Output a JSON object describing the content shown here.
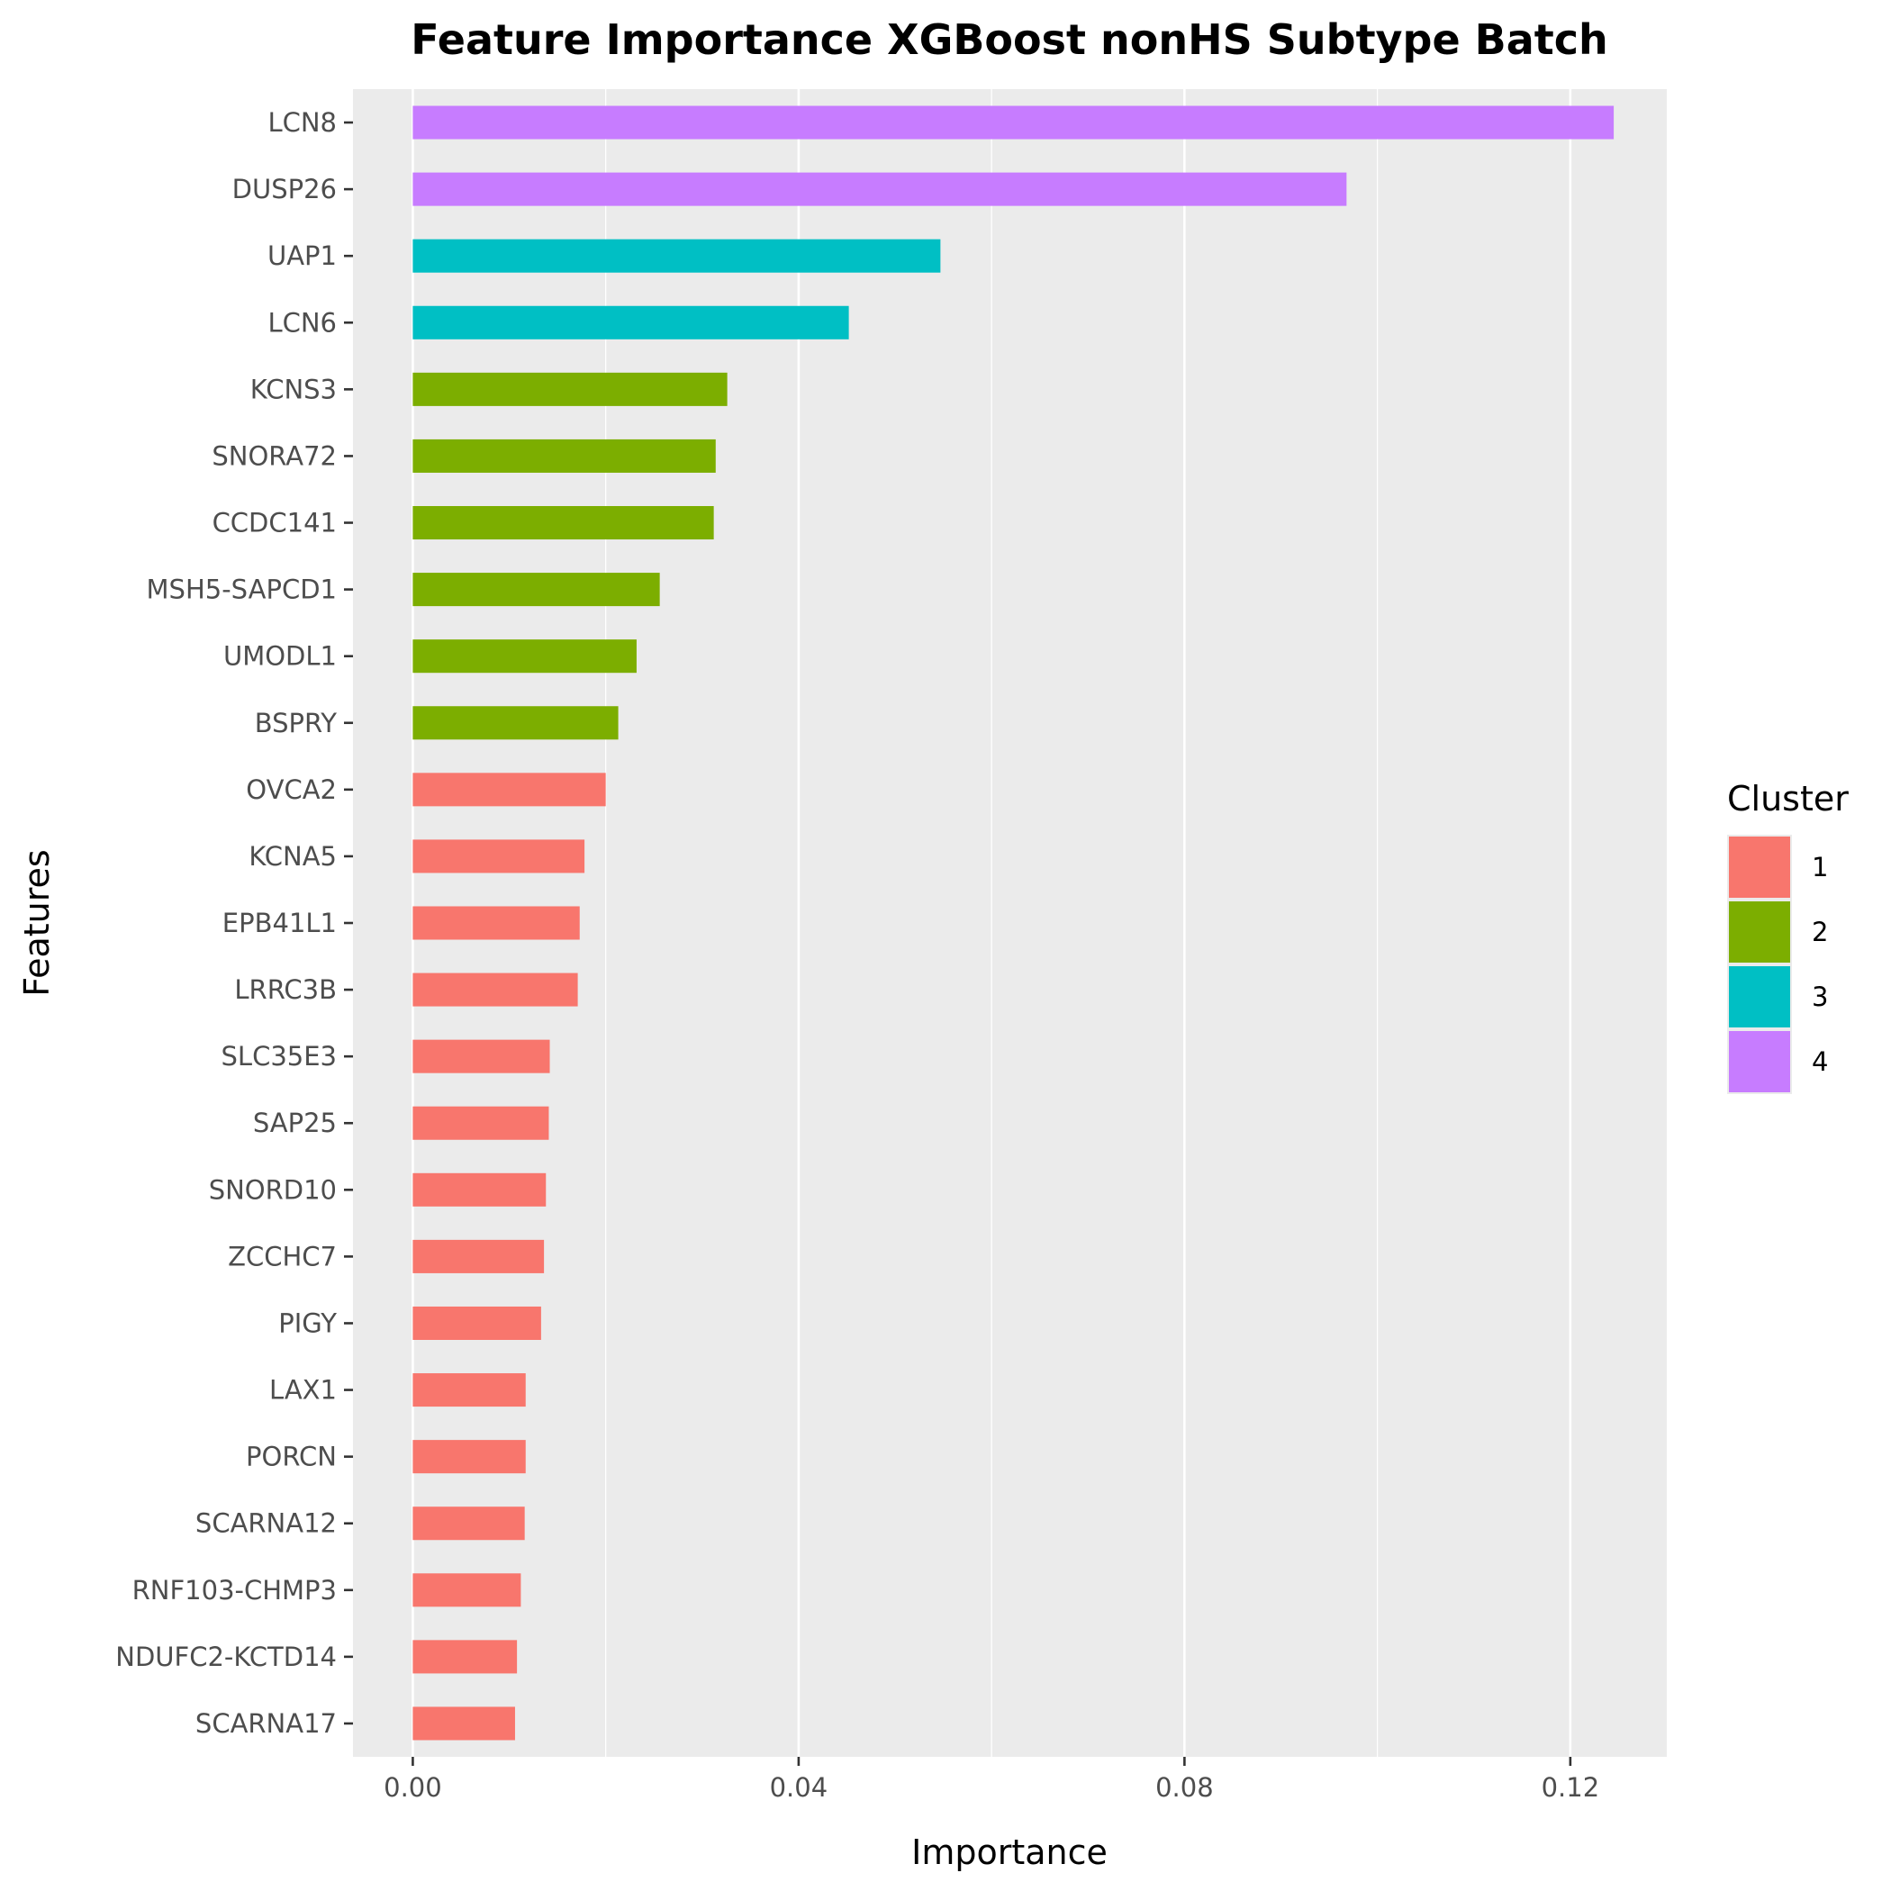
{
  "chart_data": {
    "type": "bar",
    "orientation": "horizontal",
    "title": "Feature Importance XGBoost nonHS Subtype Batch",
    "xlabel": "Importance",
    "ylabel": "Features",
    "xlim": [
      -0.0062,
      0.13
    ],
    "x_ticks": [
      0.0,
      0.04,
      0.08,
      0.12
    ],
    "x_tick_labels": [
      "0.00",
      "0.04",
      "0.08",
      "0.12"
    ],
    "grid": true,
    "legend_position": "right",
    "legend_title": "Cluster",
    "legend": [
      {
        "label": "1",
        "color": "#F8766D"
      },
      {
        "label": "2",
        "color": "#7CAE00"
      },
      {
        "label": "3",
        "color": "#00BFC4"
      },
      {
        "label": "4",
        "color": "#C77CFF"
      }
    ],
    "categories": [
      "LCN8",
      "DUSP26",
      "UAP1",
      "LCN6",
      "KCNS3",
      "SNORA72",
      "CCDC141",
      "MSH5-SAPCD1",
      "UMODL1",
      "BSPRY",
      "OVCA2",
      "KCNA5",
      "EPB41L1",
      "LRRC3B",
      "SLC35E3",
      "SAP25",
      "SNORD10",
      "ZCCHC7",
      "PIGY",
      "LAX1",
      "PORCN",
      "SCARNA12",
      "RNF103-CHMP3",
      "NDUFC2-KCTD14",
      "SCARNA17"
    ],
    "values": [
      0.1245,
      0.0968,
      0.0547,
      0.0452,
      0.0326,
      0.0314,
      0.0312,
      0.0256,
      0.0232,
      0.0213,
      0.02,
      0.0178,
      0.0173,
      0.0171,
      0.0142,
      0.0141,
      0.0138,
      0.0136,
      0.0133,
      0.0117,
      0.0117,
      0.0116,
      0.0112,
      0.0108,
      0.0106
    ],
    "clusters": [
      "4",
      "4",
      "3",
      "3",
      "2",
      "2",
      "2",
      "2",
      "2",
      "2",
      "1",
      "1",
      "1",
      "1",
      "1",
      "1",
      "1",
      "1",
      "1",
      "1",
      "1",
      "1",
      "1",
      "1",
      "1"
    ]
  },
  "colors": {
    "panel_background": "#EBEBEB",
    "gridline": "#FFFFFF",
    "tick_mark": "#333333"
  }
}
